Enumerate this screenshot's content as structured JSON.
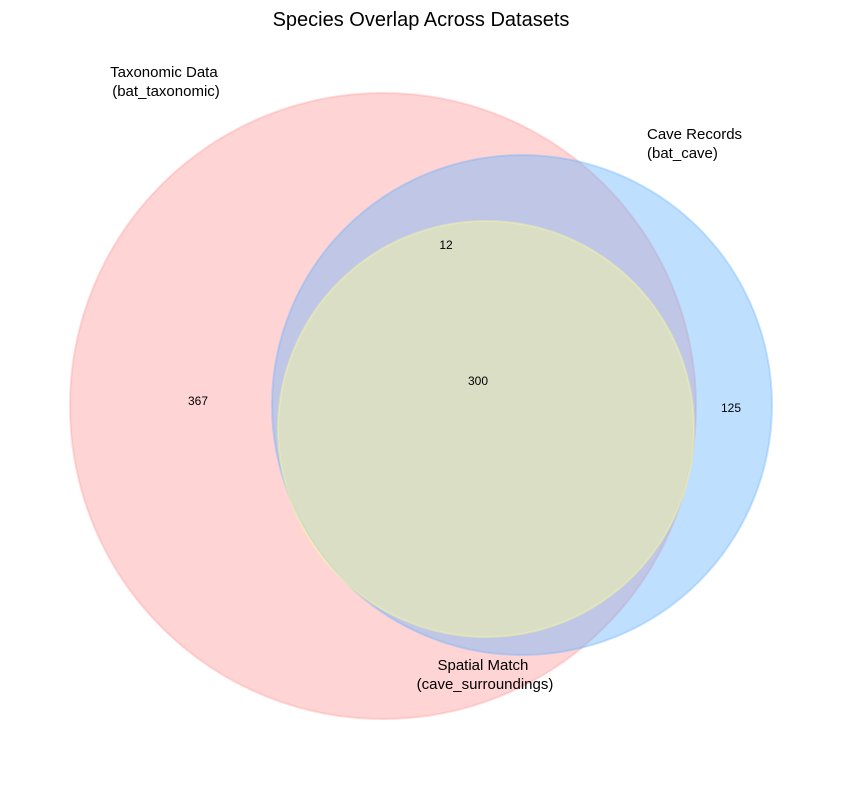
{
  "chart_data": {
    "type": "venn",
    "title": "Species Overlap Across Datasets",
    "sets": [
      {
        "name_line1": "Taxonomic Data",
        "name_line2": "(bat_taxonomic)",
        "color": "#ff9999"
      },
      {
        "name_line1": "Cave Records",
        "name_line2": "(bat_cave)",
        "color": "#66b3ff"
      },
      {
        "name_line1": "Spatial Match",
        "name_line2": "(cave_surroundings)",
        "color": "#ffff99"
      }
    ],
    "regions": {
      "taxonomic_only": "367",
      "cave_only": "125",
      "taxonomic_and_cave_only": "12",
      "all_three": "300"
    }
  }
}
